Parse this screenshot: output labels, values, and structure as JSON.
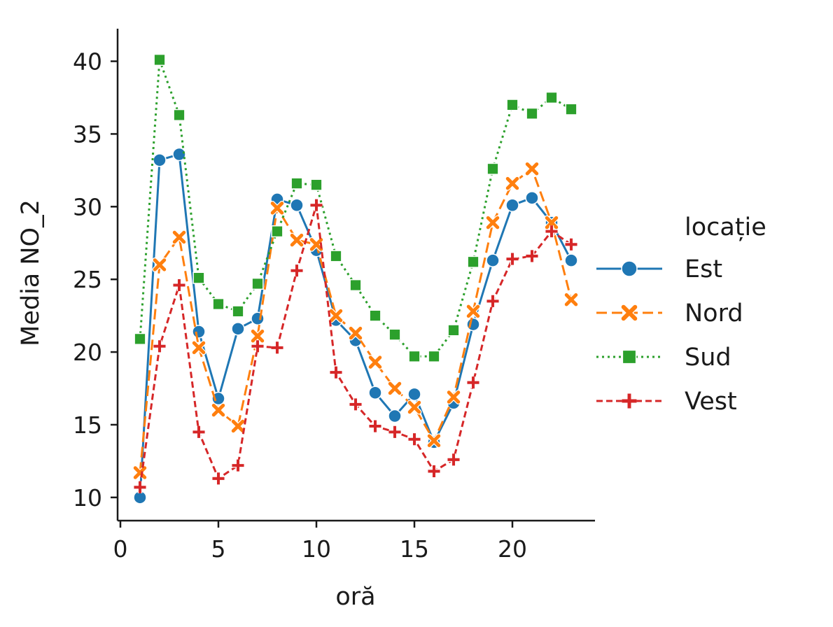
{
  "chart_data": {
    "type": "line",
    "title": "",
    "xlabel": "oră",
    "ylabel": "Media NO_2",
    "xlim": [
      0,
      24
    ],
    "ylim": [
      8.5,
      42
    ],
    "xticks": [
      0,
      5,
      10,
      15,
      20
    ],
    "yticks": [
      10,
      15,
      20,
      25,
      30,
      35,
      40
    ],
    "grid": false,
    "legend": {
      "title": "locație",
      "placement": "right"
    },
    "x": [
      1,
      2,
      3,
      4,
      5,
      6,
      7,
      8,
      9,
      10,
      11,
      12,
      13,
      14,
      15,
      16,
      17,
      18,
      19,
      20,
      21,
      22,
      23
    ],
    "series": [
      {
        "name": "Est",
        "color": "#1f77b4",
        "marker": "circle",
        "dash": "solid",
        "values": [
          10.0,
          33.2,
          33.6,
          21.4,
          16.8,
          21.6,
          22.3,
          30.5,
          30.1,
          27.0,
          22.2,
          20.8,
          17.2,
          15.6,
          17.1,
          13.8,
          16.5,
          21.9,
          26.3,
          30.1,
          30.6,
          28.9,
          26.3
        ]
      },
      {
        "name": "Nord",
        "color": "#ff7f0e",
        "marker": "x",
        "dash": "dashed",
        "values": [
          11.7,
          26.0,
          27.9,
          20.3,
          16.0,
          14.9,
          21.1,
          29.9,
          27.7,
          27.4,
          22.5,
          21.3,
          19.3,
          17.5,
          16.2,
          13.9,
          16.9,
          22.8,
          28.9,
          31.6,
          32.6,
          28.9,
          23.6
        ]
      },
      {
        "name": "Sud",
        "color": "#2ca02c",
        "marker": "square",
        "dash": "dotted",
        "values": [
          20.9,
          40.1,
          36.3,
          25.1,
          23.3,
          22.8,
          24.7,
          28.3,
          31.6,
          31.5,
          26.6,
          24.6,
          22.5,
          21.2,
          19.7,
          19.7,
          21.5,
          26.2,
          32.6,
          37.0,
          36.4,
          37.5,
          36.7
        ]
      },
      {
        "name": "Vest",
        "color": "#d62728",
        "marker": "plus",
        "dash": "dashdot",
        "values": [
          10.7,
          20.4,
          24.6,
          14.5,
          11.3,
          12.2,
          20.4,
          20.3,
          25.6,
          30.1,
          18.6,
          16.4,
          14.9,
          14.5,
          14.0,
          11.8,
          12.6,
          17.9,
          23.5,
          26.4,
          26.6,
          28.3,
          27.4
        ]
      }
    ]
  }
}
